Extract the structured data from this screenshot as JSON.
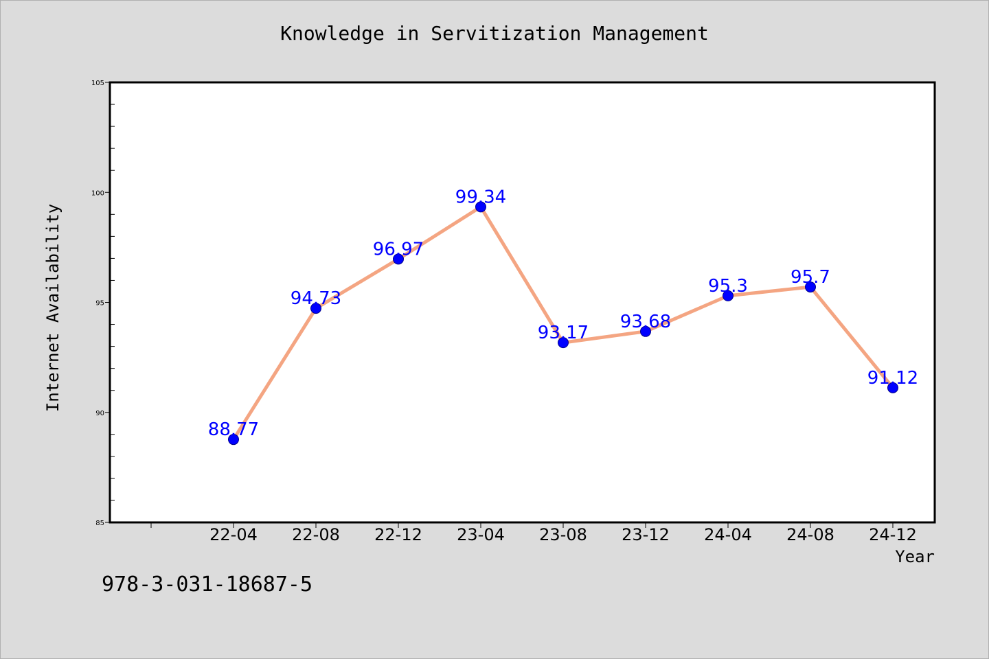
{
  "chart_data": {
    "type": "line",
    "title": "Knowledge in Servitization Management",
    "xlabel": "Year",
    "ylabel": "Internet Availability",
    "categories": [
      "22-04",
      "22-08",
      "22-12",
      "23-04",
      "23-08",
      "23-12",
      "24-04",
      "24-08",
      "24-12"
    ],
    "series": [
      {
        "values": [
          88.77,
          94.73,
          96.97,
          99.34,
          93.17,
          93.68,
          95.3,
          95.7,
          91.12
        ],
        "labels": [
          "88.77",
          "94.73",
          "96.97",
          "99.34",
          "93.17",
          "93.68",
          "95.3",
          "95.7",
          "91.12"
        ]
      }
    ],
    "ylim": [
      85,
      105
    ],
    "yticks": [
      "85",
      "90",
      "95",
      "100",
      "105"
    ],
    "grid": false,
    "legend": "none",
    "colors": {
      "line": "#f4a582",
      "marker": "#0000ff",
      "marker_edge": "#00008b",
      "data_label": "#0000ff",
      "background": "#dcdcdc",
      "plot_background": "#ffffff"
    }
  },
  "footer": {
    "isbn": "978-3-031-18687-5"
  }
}
